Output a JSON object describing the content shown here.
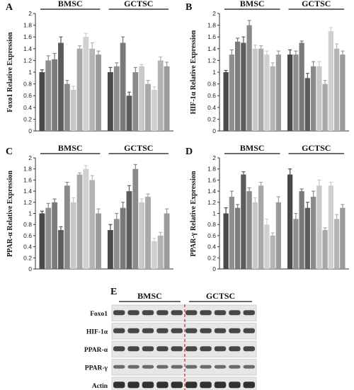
{
  "chart_data": [
    {
      "panel": "A",
      "type": "bar",
      "ylabel": "Foxo1 Relative Expression",
      "ylim": [
        0,
        2
      ],
      "yticks": [
        "0",
        "0.2",
        "0.4",
        "0.6",
        "0.8",
        "1",
        "1.2",
        "1.4",
        "1.6",
        "1.8",
        "2"
      ],
      "groups": [
        "BMSC",
        "GCTSC"
      ],
      "series": [
        {
          "group": "BMSC",
          "values": [
            1.0,
            1.2,
            1.22,
            1.5,
            0.8,
            0.7,
            1.4,
            1.6,
            1.4,
            1.3
          ],
          "errors": [
            0.04,
            0.08,
            0.1,
            0.1,
            0.06,
            0.06,
            0.05,
            0.06,
            0.1,
            0.06
          ]
        },
        {
          "group": "GCTSC",
          "values": [
            1.0,
            1.1,
            1.5,
            0.6,
            1.0,
            1.1,
            0.8,
            0.7,
            1.2,
            1.1
          ],
          "errors": [
            0.08,
            0.06,
            0.1,
            0.06,
            0.08,
            0.03,
            0.06,
            0.05,
            0.06,
            0.07
          ]
        }
      ]
    },
    {
      "panel": "B",
      "type": "bar",
      "ylabel": "HIF-1α Relative Expression",
      "ylim": [
        0,
        2
      ],
      "yticks": [
        "0",
        "0.2",
        "0.4",
        "0.6",
        "0.8",
        "1",
        "1.2",
        "1.4",
        "1.6",
        "1.8",
        "2"
      ],
      "groups": [
        "BMSC",
        "GCTSC"
      ],
      "series": [
        {
          "group": "BMSC",
          "values": [
            1.0,
            1.3,
            1.52,
            1.5,
            1.8,
            1.4,
            1.4,
            1.3,
            1.1,
            1.3
          ],
          "errors": [
            0.03,
            0.08,
            0.06,
            0.1,
            0.08,
            0.06,
            0.05,
            0.06,
            0.06,
            0.06
          ]
        },
        {
          "group": "GCTSC",
          "values": [
            1.3,
            1.3,
            1.5,
            0.9,
            1.1,
            1.1,
            0.8,
            1.7,
            1.4,
            1.3
          ],
          "errors": [
            0.08,
            0.06,
            0.03,
            0.08,
            0.08,
            0.08,
            0.06,
            0.06,
            0.08,
            0.06
          ]
        }
      ]
    },
    {
      "panel": "C",
      "type": "bar",
      "ylabel": "PPAR-α Relative Expression",
      "ylim": [
        0,
        2
      ],
      "yticks": [
        "0",
        "0.2",
        "0.4",
        "0.6",
        "0.8",
        "1",
        "1.2",
        "1.4",
        "1.6",
        "1.8",
        "2"
      ],
      "groups": [
        "BMSC",
        "GCTSC"
      ],
      "series": [
        {
          "group": "BMSC",
          "values": [
            1.0,
            1.1,
            1.2,
            0.7,
            1.5,
            1.2,
            1.7,
            1.8,
            1.6,
            1.0
          ],
          "errors": [
            0.04,
            0.08,
            0.06,
            0.06,
            0.06,
            0.08,
            0.03,
            0.06,
            0.08,
            0.08
          ]
        },
        {
          "group": "GCTSC",
          "values": [
            0.7,
            0.9,
            1.1,
            1.4,
            1.8,
            1.2,
            1.3,
            0.5,
            0.6,
            1.0
          ],
          "errors": [
            0.1,
            0.1,
            0.1,
            0.1,
            0.08,
            0.06,
            0.05,
            0.05,
            0.06,
            0.08
          ]
        }
      ]
    },
    {
      "panel": "D",
      "type": "bar",
      "ylabel": "PPAR-γ Relative Expression",
      "ylim": [
        0,
        2
      ],
      "yticks": [
        "0",
        "0.2",
        "0.4",
        "0.6",
        "0.8",
        "1",
        "1.2",
        "1.4",
        "1.6",
        "1.8",
        "2"
      ],
      "groups": [
        "BMSC",
        "GCTSC"
      ],
      "series": [
        {
          "group": "BMSC",
          "values": [
            1.0,
            1.3,
            1.1,
            1.7,
            1.4,
            1.2,
            1.5,
            0.8,
            0.6,
            1.2
          ],
          "errors": [
            0.1,
            0.1,
            0.06,
            0.05,
            0.06,
            0.08,
            0.06,
            0.1,
            0.05,
            0.1
          ]
        },
        {
          "group": "GCTSC",
          "values": [
            1.7,
            0.9,
            1.4,
            1.1,
            1.3,
            1.5,
            0.7,
            1.5,
            0.9,
            1.1
          ],
          "errors": [
            0.1,
            0.1,
            0.04,
            0.1,
            0.1,
            0.1,
            0.04,
            0.06,
            0.08,
            0.06
          ]
        }
      ]
    }
  ],
  "bar_colors": [
    "#4a4a4a",
    "#8e8e8e",
    "#7a7a7a",
    "#5c5c5c",
    "#8a8a8a",
    "#c8c8c8",
    "#a8a8a8",
    "#d0d0d0",
    "#b4b4b4",
    "#9a9a9a"
  ],
  "blot": {
    "panel": "E",
    "groups": [
      "BMSC",
      "GCTSC"
    ],
    "rows": [
      "Foxo1",
      "HIF-1α",
      "PPAR-α",
      "PPAR-γ",
      "Actin"
    ],
    "divider_color": "#d02020"
  }
}
